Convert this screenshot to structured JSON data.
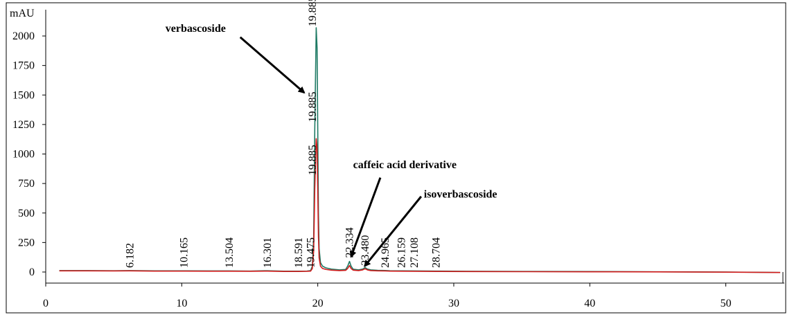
{
  "chart_data": {
    "type": "line",
    "title": "",
    "xlabel": "",
    "ylabel": "mAU",
    "xlim": [
      0,
      54.3
    ],
    "ylim": [
      -100,
      2200
    ],
    "x_ticks": [
      "0",
      "10",
      "20",
      "30",
      "40",
      "50"
    ],
    "x_tick_values": [
      0,
      10,
      20,
      30,
      40,
      50
    ],
    "y_ticks": [
      "0",
      "250",
      "500",
      "750",
      "1000",
      "1250",
      "1500",
      "1750",
      "2000"
    ],
    "y_tick_values": [
      0,
      250,
      500,
      750,
      1000,
      1250,
      1500,
      1750,
      2000
    ],
    "grid": false,
    "series": [
      {
        "color": "#1e7a64",
        "x": [
          1.0,
          3.0,
          5.0,
          6.18,
          8.0,
          10.17,
          12.0,
          13.5,
          15.0,
          16.3,
          17.5,
          18.59,
          19.2,
          19.475,
          19.6,
          19.7,
          19.78,
          19.885,
          19.95,
          20.0,
          20.05,
          20.1,
          20.2,
          20.35,
          20.6,
          21.0,
          21.6,
          22.05,
          22.2,
          22.334,
          22.45,
          22.6,
          23.0,
          23.3,
          23.48,
          23.65,
          23.9,
          24.4,
          24.965,
          25.3,
          26.159,
          27.108,
          28.704,
          31.0,
          35.0,
          40.0,
          45.0,
          50.0,
          54.0
        ],
        "y": [
          12,
          12,
          11,
          12,
          10,
          10,
          9,
          9,
          8,
          11,
          7,
          7,
          8,
          12,
          50,
          300,
          1200,
          2070,
          1900,
          1200,
          500,
          200,
          80,
          50,
          35,
          25,
          18,
          22,
          50,
          90,
          50,
          24,
          18,
          25,
          38,
          25,
          18,
          14,
          13,
          11,
          10,
          9,
          8,
          6,
          5,
          4,
          2,
          0,
          -4
        ]
      },
      {
        "color": "#d11b1b",
        "x": [
          1.0,
          3.0,
          5.0,
          6.18,
          8.0,
          10.17,
          12.0,
          13.5,
          15.0,
          16.3,
          17.5,
          18.59,
          19.2,
          19.475,
          19.6,
          19.7,
          19.78,
          19.885,
          19.95,
          20.0,
          20.05,
          20.1,
          20.2,
          20.35,
          20.6,
          21.0,
          21.6,
          22.05,
          22.2,
          22.334,
          22.45,
          22.6,
          23.0,
          23.3,
          23.48,
          23.65,
          23.9,
          24.4,
          24.965,
          25.3,
          26.159,
          27.108,
          28.704,
          31.0,
          35.0,
          40.0,
          45.0,
          50.0,
          54.0
        ],
        "y": [
          10,
          10,
          9,
          10,
          8,
          8,
          7,
          7,
          6,
          8,
          5,
          5,
          6,
          8,
          30,
          180,
          700,
          1130,
          1050,
          700,
          300,
          120,
          50,
          30,
          22,
          16,
          12,
          14,
          30,
          55,
          30,
          16,
          12,
          18,
          28,
          18,
          12,
          10,
          9,
          8,
          7,
          6,
          5,
          4,
          3,
          2,
          1,
          -1,
          -4
        ]
      }
    ],
    "peak_labels": [
      {
        "text": "6.182",
        "x": 6.182,
        "y": 35
      },
      {
        "text": "10.165",
        "x": 10.165,
        "y": 35
      },
      {
        "text": "13.504",
        "x": 13.504,
        "y": 35
      },
      {
        "text": "16.301",
        "x": 16.301,
        "y": 35
      },
      {
        "text": "18.591",
        "x": 18.591,
        "y": 35
      },
      {
        "text": "19.475",
        "x": 19.475,
        "y": 35
      },
      {
        "text": "19.885",
        "x": 19.6,
        "y": 820
      },
      {
        "text": "19.885",
        "x": 19.6,
        "y": 1270
      },
      {
        "text": "19.885",
        "x": 19.6,
        "y": 2080
      },
      {
        "text": "22.334",
        "x": 22.334,
        "y": 120
      },
      {
        "text": "23.480",
        "x": 23.48,
        "y": 55
      },
      {
        "text": "24.965",
        "x": 24.965,
        "y": 35
      },
      {
        "text": "26.159",
        "x": 26.159,
        "y": 35
      },
      {
        "text": "27.108",
        "x": 27.108,
        "y": 35
      },
      {
        "text": "28.704",
        "x": 28.704,
        "y": 35
      }
    ],
    "annotations": [
      {
        "text": "verbascoside",
        "text_x": 8.8,
        "text_y": 2035,
        "arrow_from": [
          14.3,
          1990
        ],
        "arrow_to": [
          19.0,
          1520
        ]
      },
      {
        "text": "caffeic acid derivative",
        "text_x": 22.6,
        "text_y": 880,
        "arrow_from": [
          24.6,
          800
        ],
        "arrow_to": [
          22.45,
          130
        ]
      },
      {
        "text": "isoverbascoside",
        "text_x": 27.8,
        "text_y": 630,
        "arrow_from": [
          27.6,
          640
        ],
        "arrow_to": [
          23.45,
          50
        ]
      }
    ]
  }
}
